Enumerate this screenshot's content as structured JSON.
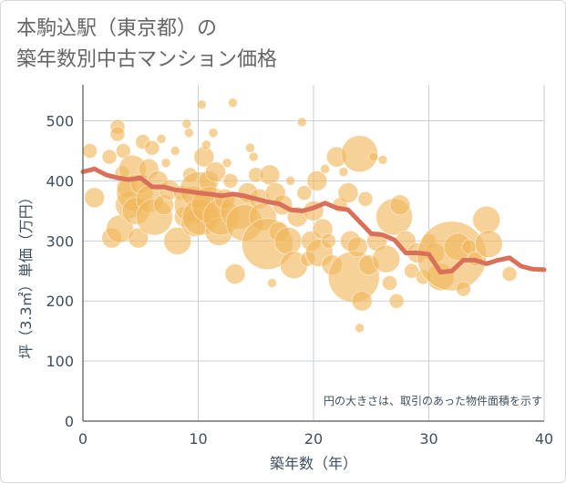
{
  "title_lines": [
    "本駒込駅（東京都）の",
    "築年数別中古マンション価格"
  ],
  "chart_data": {
    "type": "scatter",
    "xlabel": "築年数（年）",
    "ylabel": "坪（3.3㎡）単価（万円）",
    "xlim": [
      0,
      40
    ],
    "ylim": [
      0,
      560
    ],
    "xticks": [
      0,
      10,
      20,
      30,
      40
    ],
    "yticks": [
      0,
      100,
      200,
      300,
      400,
      500
    ],
    "grid": true,
    "note": "円の大きさは、取引のあった物件面積を示す",
    "colors": {
      "bubble": "#f0b65a",
      "line": "#d9705a",
      "grid": "#c9cfd6"
    },
    "bubbles": [
      {
        "x": 0.6,
        "y": 450,
        "s": "s"
      },
      {
        "x": 1.0,
        "y": 372,
        "s": "m"
      },
      {
        "x": 2.3,
        "y": 440,
        "s": "s"
      },
      {
        "x": 2.5,
        "y": 305,
        "s": "m"
      },
      {
        "x": 3.0,
        "y": 490,
        "s": "s"
      },
      {
        "x": 3.0,
        "y": 478,
        "s": "s"
      },
      {
        "x": 3.4,
        "y": 413,
        "s": "s"
      },
      {
        "x": 3.8,
        "y": 390,
        "s": "m"
      },
      {
        "x": 3.2,
        "y": 320,
        "s": "l"
      },
      {
        "x": 3.5,
        "y": 450,
        "s": "s"
      },
      {
        "x": 4.0,
        "y": 360,
        "s": "l"
      },
      {
        "x": 4.3,
        "y": 420,
        "s": "l"
      },
      {
        "x": 4.5,
        "y": 380,
        "s": "xl"
      },
      {
        "x": 4.6,
        "y": 350,
        "s": "l"
      },
      {
        "x": 4.8,
        "y": 305,
        "s": "m"
      },
      {
        "x": 5.0,
        "y": 395,
        "s": "m"
      },
      {
        "x": 5.2,
        "y": 465,
        "s": "s"
      },
      {
        "x": 5.7,
        "y": 420,
        "s": "m"
      },
      {
        "x": 5.8,
        "y": 370,
        "s": "l"
      },
      {
        "x": 6.0,
        "y": 455,
        "s": "s"
      },
      {
        "x": 6.2,
        "y": 340,
        "s": "xl"
      },
      {
        "x": 6.5,
        "y": 400,
        "s": "m"
      },
      {
        "x": 6.8,
        "y": 470,
        "s": "xs"
      },
      {
        "x": 7.0,
        "y": 360,
        "s": "m"
      },
      {
        "x": 7.2,
        "y": 430,
        "s": "xs"
      },
      {
        "x": 7.5,
        "y": 385,
        "s": "m"
      },
      {
        "x": 8.0,
        "y": 450,
        "s": "xs"
      },
      {
        "x": 8.2,
        "y": 300,
        "s": "l"
      },
      {
        "x": 8.5,
        "y": 380,
        "s": "s"
      },
      {
        "x": 8.8,
        "y": 340,
        "s": "m"
      },
      {
        "x": 9.0,
        "y": 495,
        "s": "xs"
      },
      {
        "x": 9.2,
        "y": 480,
        "s": "xs"
      },
      {
        "x": 9.3,
        "y": 410,
        "s": "s"
      },
      {
        "x": 9.5,
        "y": 360,
        "s": "xl"
      },
      {
        "x": 9.7,
        "y": 330,
        "s": "l"
      },
      {
        "x": 10.0,
        "y": 385,
        "s": "xl"
      },
      {
        "x": 10.2,
        "y": 340,
        "s": "xl"
      },
      {
        "x": 10.3,
        "y": 527,
        "s": "xs"
      },
      {
        "x": 10.5,
        "y": 440,
        "s": "m"
      },
      {
        "x": 10.7,
        "y": 460,
        "s": "xs"
      },
      {
        "x": 10.9,
        "y": 400,
        "s": "m"
      },
      {
        "x": 11.0,
        "y": 360,
        "s": "xl"
      },
      {
        "x": 11.3,
        "y": 480,
        "s": "xs"
      },
      {
        "x": 11.5,
        "y": 415,
        "s": "m"
      },
      {
        "x": 11.8,
        "y": 315,
        "s": "l"
      },
      {
        "x": 12.0,
        "y": 340,
        "s": "xl"
      },
      {
        "x": 12.3,
        "y": 370,
        "s": "m"
      },
      {
        "x": 12.5,
        "y": 430,
        "s": "xs"
      },
      {
        "x": 12.8,
        "y": 400,
        "s": "s"
      },
      {
        "x": 13.0,
        "y": 530,
        "s": "xs"
      },
      {
        "x": 13.2,
        "y": 245,
        "s": "m"
      },
      {
        "x": 13.5,
        "y": 350,
        "s": "xl"
      },
      {
        "x": 14.0,
        "y": 330,
        "s": "xl"
      },
      {
        "x": 14.3,
        "y": 380,
        "s": "m"
      },
      {
        "x": 14.5,
        "y": 455,
        "s": "xs"
      },
      {
        "x": 14.8,
        "y": 440,
        "s": "xs"
      },
      {
        "x": 15.0,
        "y": 410,
        "s": "s"
      },
      {
        "x": 15.3,
        "y": 370,
        "s": "m"
      },
      {
        "x": 15.6,
        "y": 340,
        "s": "l"
      },
      {
        "x": 16.0,
        "y": 295,
        "s": "xxl"
      },
      {
        "x": 16.2,
        "y": 410,
        "s": "m"
      },
      {
        "x": 16.4,
        "y": 230,
        "s": "xs"
      },
      {
        "x": 16.7,
        "y": 380,
        "s": "m"
      },
      {
        "x": 17.0,
        "y": 315,
        "s": "m"
      },
      {
        "x": 17.3,
        "y": 360,
        "s": "m"
      },
      {
        "x": 17.8,
        "y": 300,
        "s": "l"
      },
      {
        "x": 18.0,
        "y": 400,
        "s": "xs"
      },
      {
        "x": 18.3,
        "y": 260,
        "s": "l"
      },
      {
        "x": 18.6,
        "y": 340,
        "s": "m"
      },
      {
        "x": 19.0,
        "y": 498,
        "s": "xs"
      },
      {
        "x": 19.2,
        "y": 380,
        "s": "s"
      },
      {
        "x": 19.5,
        "y": 270,
        "s": "s"
      },
      {
        "x": 19.8,
        "y": 300,
        "s": "m"
      },
      {
        "x": 20.0,
        "y": 350,
        "s": "m"
      },
      {
        "x": 20.3,
        "y": 400,
        "s": "m"
      },
      {
        "x": 20.5,
        "y": 280,
        "s": "l"
      },
      {
        "x": 20.8,
        "y": 320,
        "s": "m"
      },
      {
        "x": 21.0,
        "y": 420,
        "s": "xs"
      },
      {
        "x": 21.3,
        "y": 300,
        "s": "s"
      },
      {
        "x": 21.6,
        "y": 260,
        "s": "m"
      },
      {
        "x": 22.0,
        "y": 440,
        "s": "m"
      },
      {
        "x": 22.3,
        "y": 360,
        "s": "s"
      },
      {
        "x": 22.6,
        "y": 415,
        "s": "xs"
      },
      {
        "x": 23.0,
        "y": 380,
        "s": "m"
      },
      {
        "x": 23.2,
        "y": 300,
        "s": "m"
      },
      {
        "x": 23.5,
        "y": 240,
        "s": "xxl"
      },
      {
        "x": 23.8,
        "y": 290,
        "s": "m"
      },
      {
        "x": 24.0,
        "y": 445,
        "s": "xl"
      },
      {
        "x": 24.0,
        "y": 155,
        "s": "xs"
      },
      {
        "x": 24.2,
        "y": 200,
        "s": "m"
      },
      {
        "x": 24.5,
        "y": 370,
        "s": "s"
      },
      {
        "x": 24.8,
        "y": 260,
        "s": "m"
      },
      {
        "x": 25.2,
        "y": 440,
        "s": "xs"
      },
      {
        "x": 25.5,
        "y": 300,
        "s": "m"
      },
      {
        "x": 26.0,
        "y": 435,
        "s": "xs"
      },
      {
        "x": 26.3,
        "y": 270,
        "s": "l"
      },
      {
        "x": 26.6,
        "y": 230,
        "s": "s"
      },
      {
        "x": 27.0,
        "y": 340,
        "s": "xl"
      },
      {
        "x": 27.2,
        "y": 200,
        "s": "s"
      },
      {
        "x": 27.5,
        "y": 360,
        "s": "m"
      },
      {
        "x": 28.0,
        "y": 300,
        "s": "m"
      },
      {
        "x": 28.5,
        "y": 250,
        "s": "s"
      },
      {
        "x": 29.0,
        "y": 280,
        "s": "m"
      },
      {
        "x": 29.5,
        "y": 240,
        "s": "s"
      },
      {
        "x": 30.0,
        "y": 300,
        "s": "s"
      },
      {
        "x": 30.5,
        "y": 280,
        "s": "m"
      },
      {
        "x": 31.0,
        "y": 240,
        "s": "l"
      },
      {
        "x": 32.0,
        "y": 275,
        "s": "huge"
      },
      {
        "x": 32.5,
        "y": 290,
        "s": "l"
      },
      {
        "x": 33.0,
        "y": 220,
        "s": "s"
      },
      {
        "x": 33.5,
        "y": 290,
        "s": "s"
      },
      {
        "x": 34.0,
        "y": 270,
        "s": "s"
      },
      {
        "x": 35.0,
        "y": 335,
        "s": "l"
      },
      {
        "x": 35.2,
        "y": 295,
        "s": "l"
      },
      {
        "x": 37.0,
        "y": 245,
        "s": "s"
      }
    ],
    "trend": [
      {
        "x": 0,
        "y": 415
      },
      {
        "x": 1,
        "y": 420
      },
      {
        "x": 2,
        "y": 410
      },
      {
        "x": 3,
        "y": 405
      },
      {
        "x": 4,
        "y": 402
      },
      {
        "x": 5,
        "y": 405
      },
      {
        "x": 6,
        "y": 390
      },
      {
        "x": 7,
        "y": 390
      },
      {
        "x": 8,
        "y": 385
      },
      {
        "x": 9,
        "y": 383
      },
      {
        "x": 10,
        "y": 380
      },
      {
        "x": 11,
        "y": 378
      },
      {
        "x": 12,
        "y": 375
      },
      {
        "x": 13,
        "y": 378
      },
      {
        "x": 14,
        "y": 375
      },
      {
        "x": 15,
        "y": 370
      },
      {
        "x": 16,
        "y": 365
      },
      {
        "x": 17,
        "y": 362
      },
      {
        "x": 18,
        "y": 352
      },
      {
        "x": 19,
        "y": 350
      },
      {
        "x": 20,
        "y": 355
      },
      {
        "x": 21,
        "y": 363
      },
      {
        "x": 22,
        "y": 355
      },
      {
        "x": 23,
        "y": 352
      },
      {
        "x": 24,
        "y": 332
      },
      {
        "x": 25,
        "y": 312
      },
      {
        "x": 26,
        "y": 310
      },
      {
        "x": 27,
        "y": 302
      },
      {
        "x": 28,
        "y": 280
      },
      {
        "x": 29,
        "y": 280
      },
      {
        "x": 30,
        "y": 278
      },
      {
        "x": 31,
        "y": 248
      },
      {
        "x": 32,
        "y": 250
      },
      {
        "x": 33,
        "y": 268
      },
      {
        "x": 34,
        "y": 268
      },
      {
        "x": 35,
        "y": 262
      },
      {
        "x": 36,
        "y": 268
      },
      {
        "x": 37,
        "y": 272
      },
      {
        "x": 38,
        "y": 258
      },
      {
        "x": 39,
        "y": 253
      },
      {
        "x": 40,
        "y": 252
      }
    ]
  }
}
